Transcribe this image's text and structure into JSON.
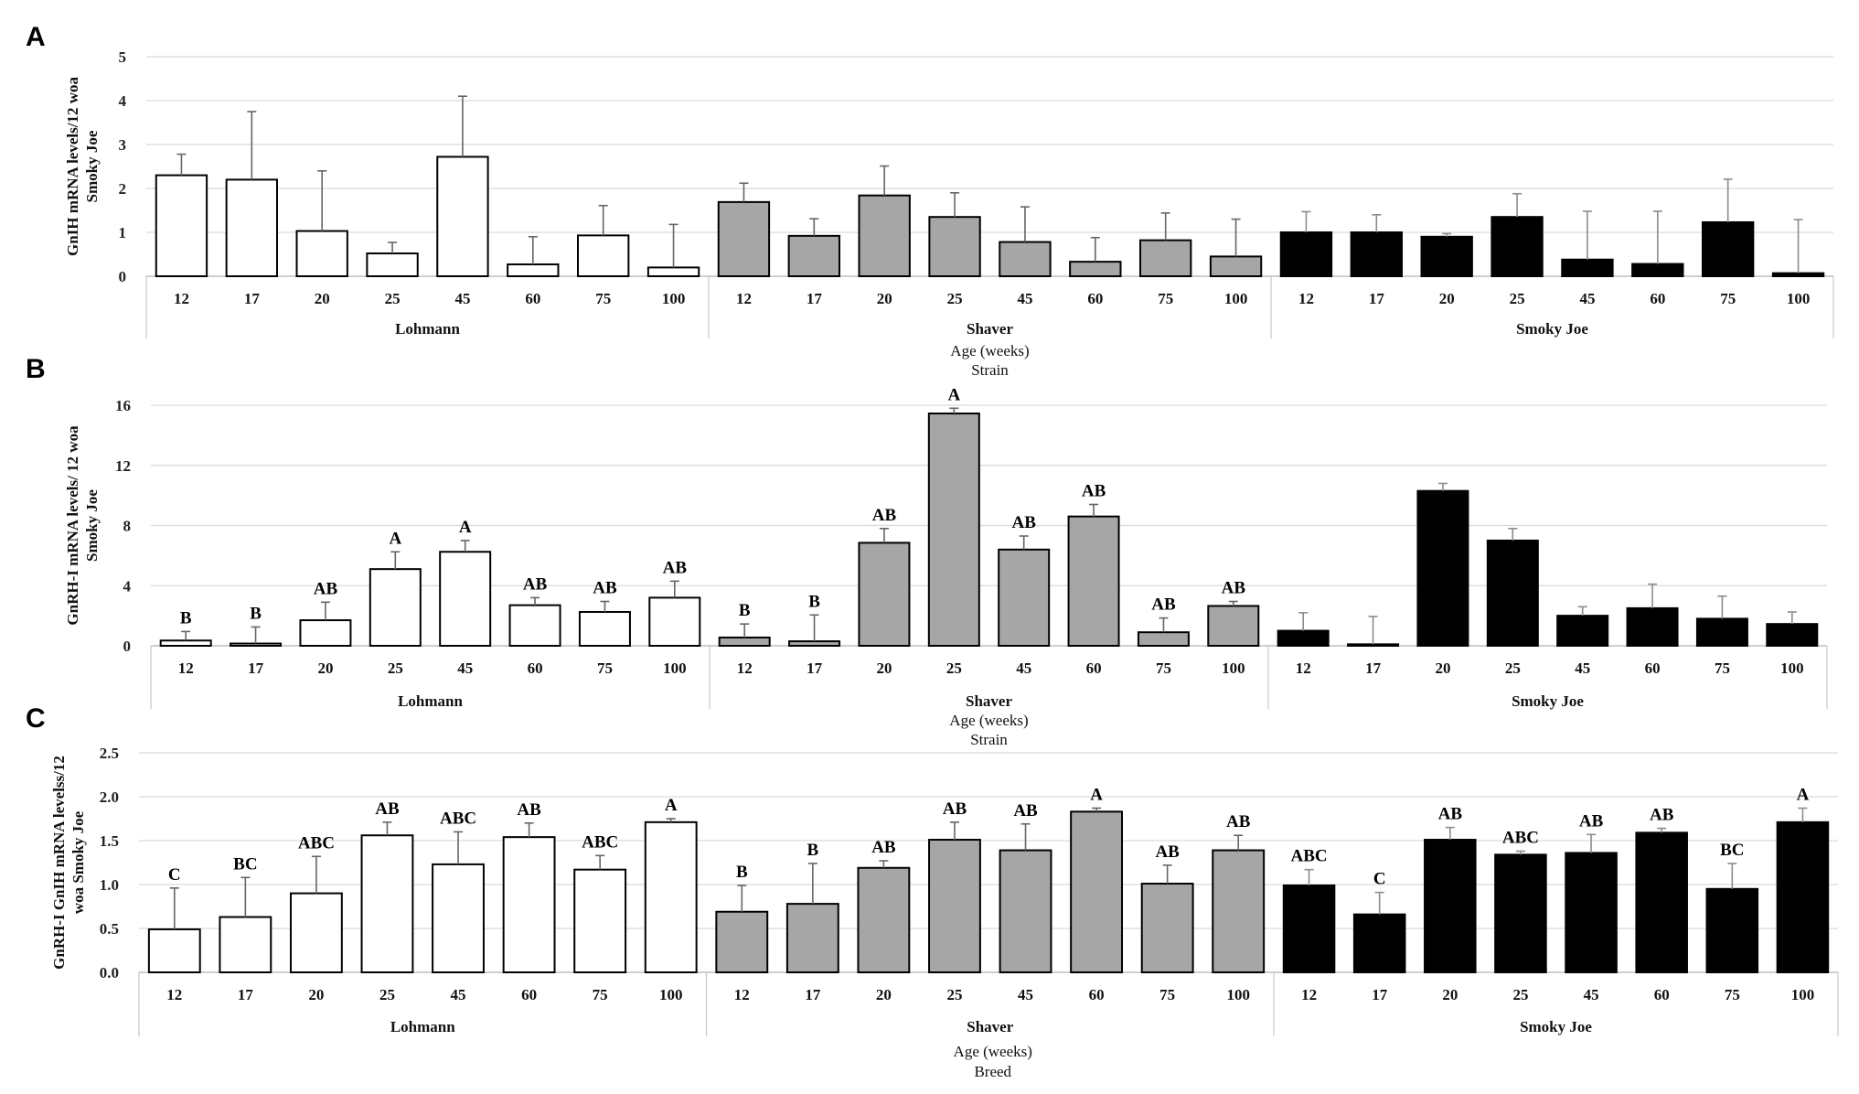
{
  "chart_data": [
    {
      "type": "bar",
      "panel": "A",
      "ylabel": [
        "GnIH mRNA levels/12 woa",
        "Smoky Joe"
      ],
      "xlabel": [
        "Age (weeks)",
        "Strain"
      ],
      "ylim": [
        0,
        5
      ],
      "yticks": [
        "0",
        "1",
        "2",
        "3",
        "4",
        "5"
      ],
      "groups": [
        "Lohmann",
        "Shaver",
        "Smoky Joe"
      ],
      "categories": [
        "12",
        "17",
        "20",
        "25",
        "45",
        "60",
        "75",
        "100"
      ],
      "series": [
        {
          "name": "Lohmann",
          "color": "#ffffff",
          "values": [
            2.3,
            2.2,
            1.03,
            0.52,
            2.72,
            0.27,
            0.93,
            0.2
          ],
          "errors": [
            0.48,
            1.55,
            1.37,
            0.25,
            1.38,
            0.63,
            0.68,
            0.98
          ],
          "letters": [
            "",
            "",
            "",
            "",
            "",
            "",
            "",
            ""
          ]
        },
        {
          "name": "Shaver",
          "color": "#a6a6a6",
          "values": [
            1.69,
            0.92,
            1.84,
            1.35,
            0.78,
            0.33,
            0.82,
            0.45
          ],
          "errors": [
            0.43,
            0.39,
            0.67,
            0.55,
            0.8,
            0.55,
            0.62,
            0.85
          ],
          "letters": [
            "",
            "",
            "",
            "",
            "",
            "",
            "",
            ""
          ]
        },
        {
          "name": "Smoky Joe",
          "color": "#000000",
          "values": [
            1.0,
            1.0,
            0.9,
            1.35,
            0.38,
            0.28,
            1.23,
            0.07
          ],
          "errors": [
            0.47,
            0.4,
            0.07,
            0.53,
            1.1,
            1.2,
            0.98,
            1.22
          ],
          "letters": [
            "",
            "",
            "",
            "",
            "",
            "",
            "",
            ""
          ]
        }
      ]
    },
    {
      "type": "bar",
      "panel": "B",
      "ylabel": [
        "GnRH-I mRNA levels/ 12 woa",
        "Smoky Joe"
      ],
      "xlabel": [
        "Age (weeks)",
        "Strain"
      ],
      "ylim": [
        0,
        16
      ],
      "yticks": [
        "0",
        "4",
        "8",
        "12",
        "16"
      ],
      "groups": [
        "Lohmann",
        "Shaver",
        "Smoky Joe"
      ],
      "categories": [
        "12",
        "17",
        "20",
        "25",
        "45",
        "60",
        "75",
        "100"
      ],
      "series": [
        {
          "name": "Lohmann",
          "color": "#ffffff",
          "values": [
            0.35,
            0.15,
            1.7,
            5.1,
            6.25,
            2.7,
            2.25,
            3.2
          ],
          "errors": [
            0.6,
            1.1,
            1.2,
            1.15,
            0.75,
            0.5,
            0.7,
            1.1
          ],
          "letters": [
            "B",
            "B",
            "AB",
            "A",
            "A",
            "AB",
            "AB",
            "AB"
          ]
        },
        {
          "name": "Shaver",
          "color": "#a6a6a6",
          "values": [
            0.55,
            0.3,
            6.85,
            15.45,
            6.4,
            8.6,
            0.9,
            2.65
          ],
          "errors": [
            0.9,
            1.75,
            0.95,
            0.35,
            0.9,
            0.8,
            0.95,
            0.3
          ],
          "letters": [
            "B",
            "B",
            "AB",
            "A",
            "AB",
            "AB",
            "AB",
            "AB"
          ]
        },
        {
          "name": "Smoky Joe",
          "color": "#000000",
          "values": [
            1.0,
            0.1,
            10.3,
            7.0,
            2.0,
            2.5,
            1.8,
            1.45
          ],
          "errors": [
            1.2,
            1.85,
            0.5,
            0.8,
            0.6,
            1.6,
            1.5,
            0.8
          ],
          "letters": [
            "",
            "",
            "",
            "",
            "",
            "",
            "",
            ""
          ]
        }
      ]
    },
    {
      "type": "bar",
      "panel": "C",
      "ylabel": [
        "GnRH-I GnIH mRNA levelss/12",
        "woa Smoky Joe"
      ],
      "xlabel": [
        "Age (weeks)",
        "Breed"
      ],
      "ylim": [
        0,
        2.5
      ],
      "yticks": [
        "0.0",
        "0.5",
        "1.0",
        "1.5",
        "2.0",
        "2.5"
      ],
      "groups": [
        "Lohmann",
        "Shaver",
        "Smoky Joe"
      ],
      "categories": [
        "12",
        "17",
        "20",
        "25",
        "45",
        "60",
        "75",
        "100"
      ],
      "series": [
        {
          "name": "Lohmann",
          "color": "#ffffff",
          "values": [
            0.49,
            0.63,
            0.9,
            1.56,
            1.23,
            1.54,
            1.17,
            1.71
          ],
          "errors": [
            0.47,
            0.45,
            0.42,
            0.15,
            0.37,
            0.16,
            0.16,
            0.04
          ],
          "letters": [
            "C",
            "BC",
            "ABC",
            "AB",
            "ABC",
            "AB",
            "ABC",
            "A"
          ]
        },
        {
          "name": "Shaver",
          "color": "#a6a6a6",
          "values": [
            0.69,
            0.78,
            1.19,
            1.51,
            1.39,
            1.83,
            1.01,
            1.39
          ],
          "errors": [
            0.3,
            0.46,
            0.08,
            0.2,
            0.3,
            0.04,
            0.21,
            0.17
          ],
          "letters": [
            "B",
            "B",
            "AB",
            "AB",
            "AB",
            "A",
            "AB",
            "AB"
          ]
        },
        {
          "name": "Smoky Joe",
          "color": "#000000",
          "values": [
            0.99,
            0.66,
            1.51,
            1.34,
            1.36,
            1.59,
            0.95,
            1.71
          ],
          "errors": [
            0.18,
            0.25,
            0.14,
            0.04,
            0.21,
            0.05,
            0.29,
            0.16
          ],
          "letters": [
            "ABC",
            "C",
            "AB",
            "ABC",
            "AB",
            "AB",
            "BC",
            "A"
          ]
        }
      ]
    }
  ]
}
